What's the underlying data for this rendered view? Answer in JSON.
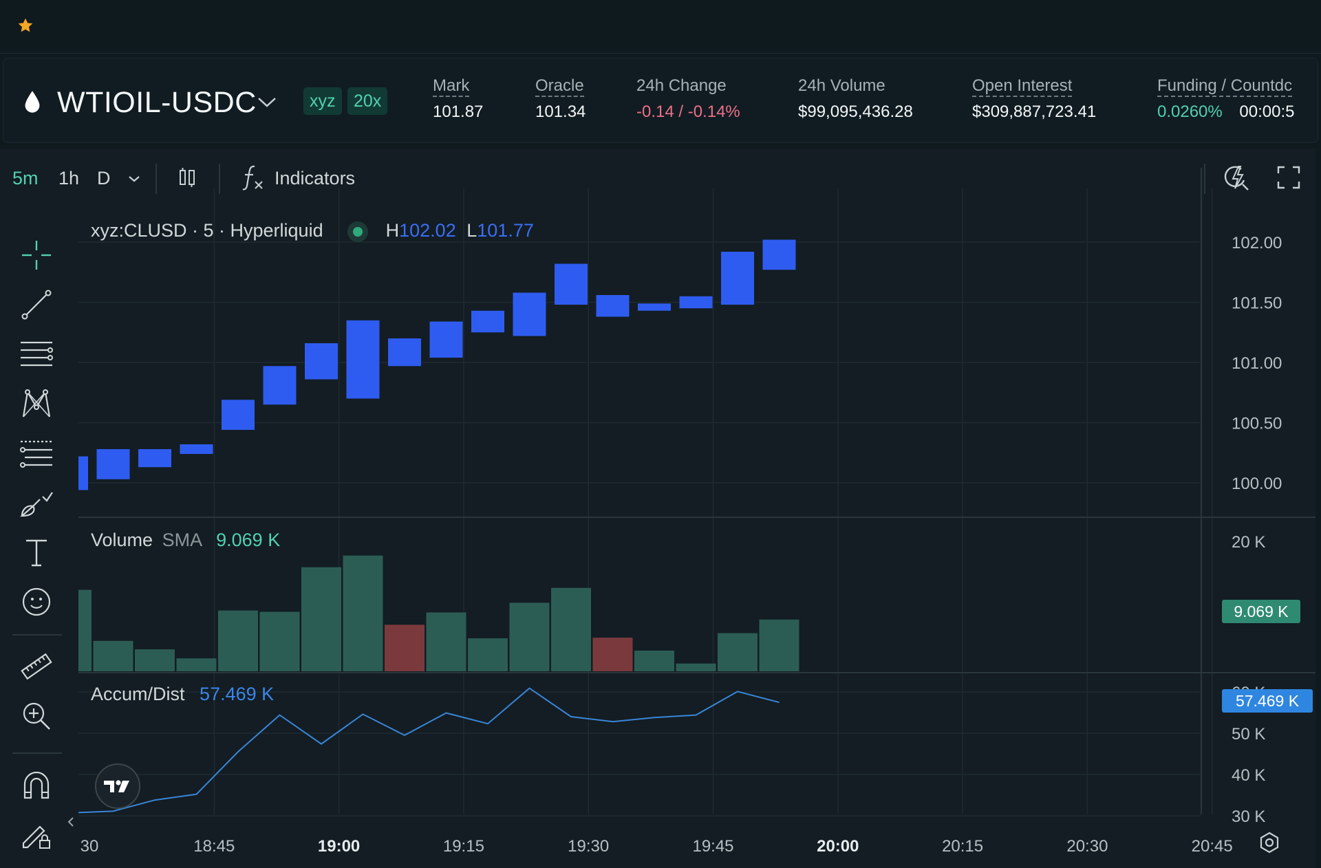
{
  "header": {
    "pair": "WTIOIL-USDC",
    "badges": [
      "xyz",
      "20x"
    ],
    "stats": [
      {
        "label": "Mark",
        "value": "101.87",
        "dashed": true
      },
      {
        "label": "Oracle",
        "value": "101.34",
        "dashed": true
      },
      {
        "label": "24h Change",
        "value": "-0.14 / -0.14%",
        "dashed": false
      },
      {
        "label": "24h Volume",
        "value": "$99,095,436.28",
        "dashed": false
      },
      {
        "label": "Open Interest",
        "value": "$309,887,723.41",
        "dashed": true
      },
      {
        "label": "Funding / Countdc",
        "value": "0.0260%",
        "value2": "00:00:5",
        "dashed": true
      }
    ]
  },
  "toolbar": {
    "timeframes": [
      "5m",
      "1h",
      "D"
    ],
    "active_timeframe": "5m",
    "indicators_label": "Indicators"
  },
  "legend": {
    "symbol": "xyz:CLUSD · 5 · Hyperliquid",
    "h_label": "H",
    "h_value": "102.02",
    "l_label": "L",
    "l_value": "101.77"
  },
  "volume_legend": {
    "name": "Volume",
    "sma_label": "SMA",
    "value": "9.069 K",
    "badge": "9.069 K"
  },
  "accum_legend": {
    "name": "Accum/Dist",
    "value": "57.469 K",
    "badge": "57.469 K"
  },
  "colors": {
    "up_candle": "#2f5cf0",
    "vol_up": "#2c5d55",
    "vol_down": "#7a3a3d",
    "accum_line": "#3a86d8",
    "accent": "#53d1b0",
    "negative": "#ed7088"
  },
  "chart_data": {
    "type": "candlestick",
    "price_axis": {
      "ticks": [
        "102.00",
        "101.50",
        "101.00",
        "100.50",
        "100.00"
      ],
      "range": [
        99.85,
        102.1
      ]
    },
    "time_axis": {
      "ticks": [
        "30",
        "18:45",
        "19:00",
        "19:15",
        "19:30",
        "19:45",
        "20:00",
        "20:15",
        "20:30",
        "20:45"
      ],
      "bold": [
        "19:00",
        "20:00"
      ]
    },
    "candles": [
      {
        "o": 99.94,
        "c": 100.22
      },
      {
        "o": 100.03,
        "c": 100.28
      },
      {
        "o": 100.13,
        "c": 100.28
      },
      {
        "o": 100.24,
        "c": 100.32
      },
      {
        "o": 100.44,
        "c": 100.69
      },
      {
        "o": 100.65,
        "c": 100.97
      },
      {
        "o": 100.86,
        "c": 101.16
      },
      {
        "o": 100.7,
        "c": 101.35
      },
      {
        "o": 100.97,
        "c": 101.2
      },
      {
        "o": 101.04,
        "c": 101.34
      },
      {
        "o": 101.25,
        "c": 101.43
      },
      {
        "o": 101.22,
        "c": 101.58
      },
      {
        "o": 101.48,
        "c": 101.82
      },
      {
        "o": 101.38,
        "c": 101.56
      },
      {
        "o": 101.43,
        "c": 101.49
      },
      {
        "o": 101.45,
        "c": 101.55
      },
      {
        "o": 101.48,
        "c": 101.92
      },
      {
        "o": 101.77,
        "c": 102.02
      }
    ],
    "volume": {
      "axis_ticks": [
        "20 K"
      ],
      "bars": [
        {
          "v": 12.6,
          "dir": "up"
        },
        {
          "v": 4.7,
          "dir": "up"
        },
        {
          "v": 3.4,
          "dir": "up"
        },
        {
          "v": 2.0,
          "dir": "up"
        },
        {
          "v": 9.4,
          "dir": "up"
        },
        {
          "v": 9.2,
          "dir": "up"
        },
        {
          "v": 16.1,
          "dir": "up"
        },
        {
          "v": 17.9,
          "dir": "up"
        },
        {
          "v": 7.2,
          "dir": "down"
        },
        {
          "v": 9.1,
          "dir": "up"
        },
        {
          "v": 5.1,
          "dir": "up"
        },
        {
          "v": 10.6,
          "dir": "up"
        },
        {
          "v": 12.9,
          "dir": "up"
        },
        {
          "v": 5.2,
          "dir": "down"
        },
        {
          "v": 3.2,
          "dir": "up"
        },
        {
          "v": 1.2,
          "dir": "up"
        },
        {
          "v": 5.9,
          "dir": "up"
        },
        {
          "v": 8.0,
          "dir": "up"
        }
      ]
    },
    "accum_dist": {
      "axis_ticks": [
        "60 K",
        "50 K",
        "40 K",
        "30 K"
      ],
      "values": [
        30.7,
        31.1,
        33.8,
        35.2,
        45.5,
        54.4,
        47.4,
        54.6,
        49.5,
        54.9,
        52.3,
        60.9,
        54.0,
        52.8,
        53.8,
        54.4,
        60.1,
        57.469
      ]
    }
  }
}
